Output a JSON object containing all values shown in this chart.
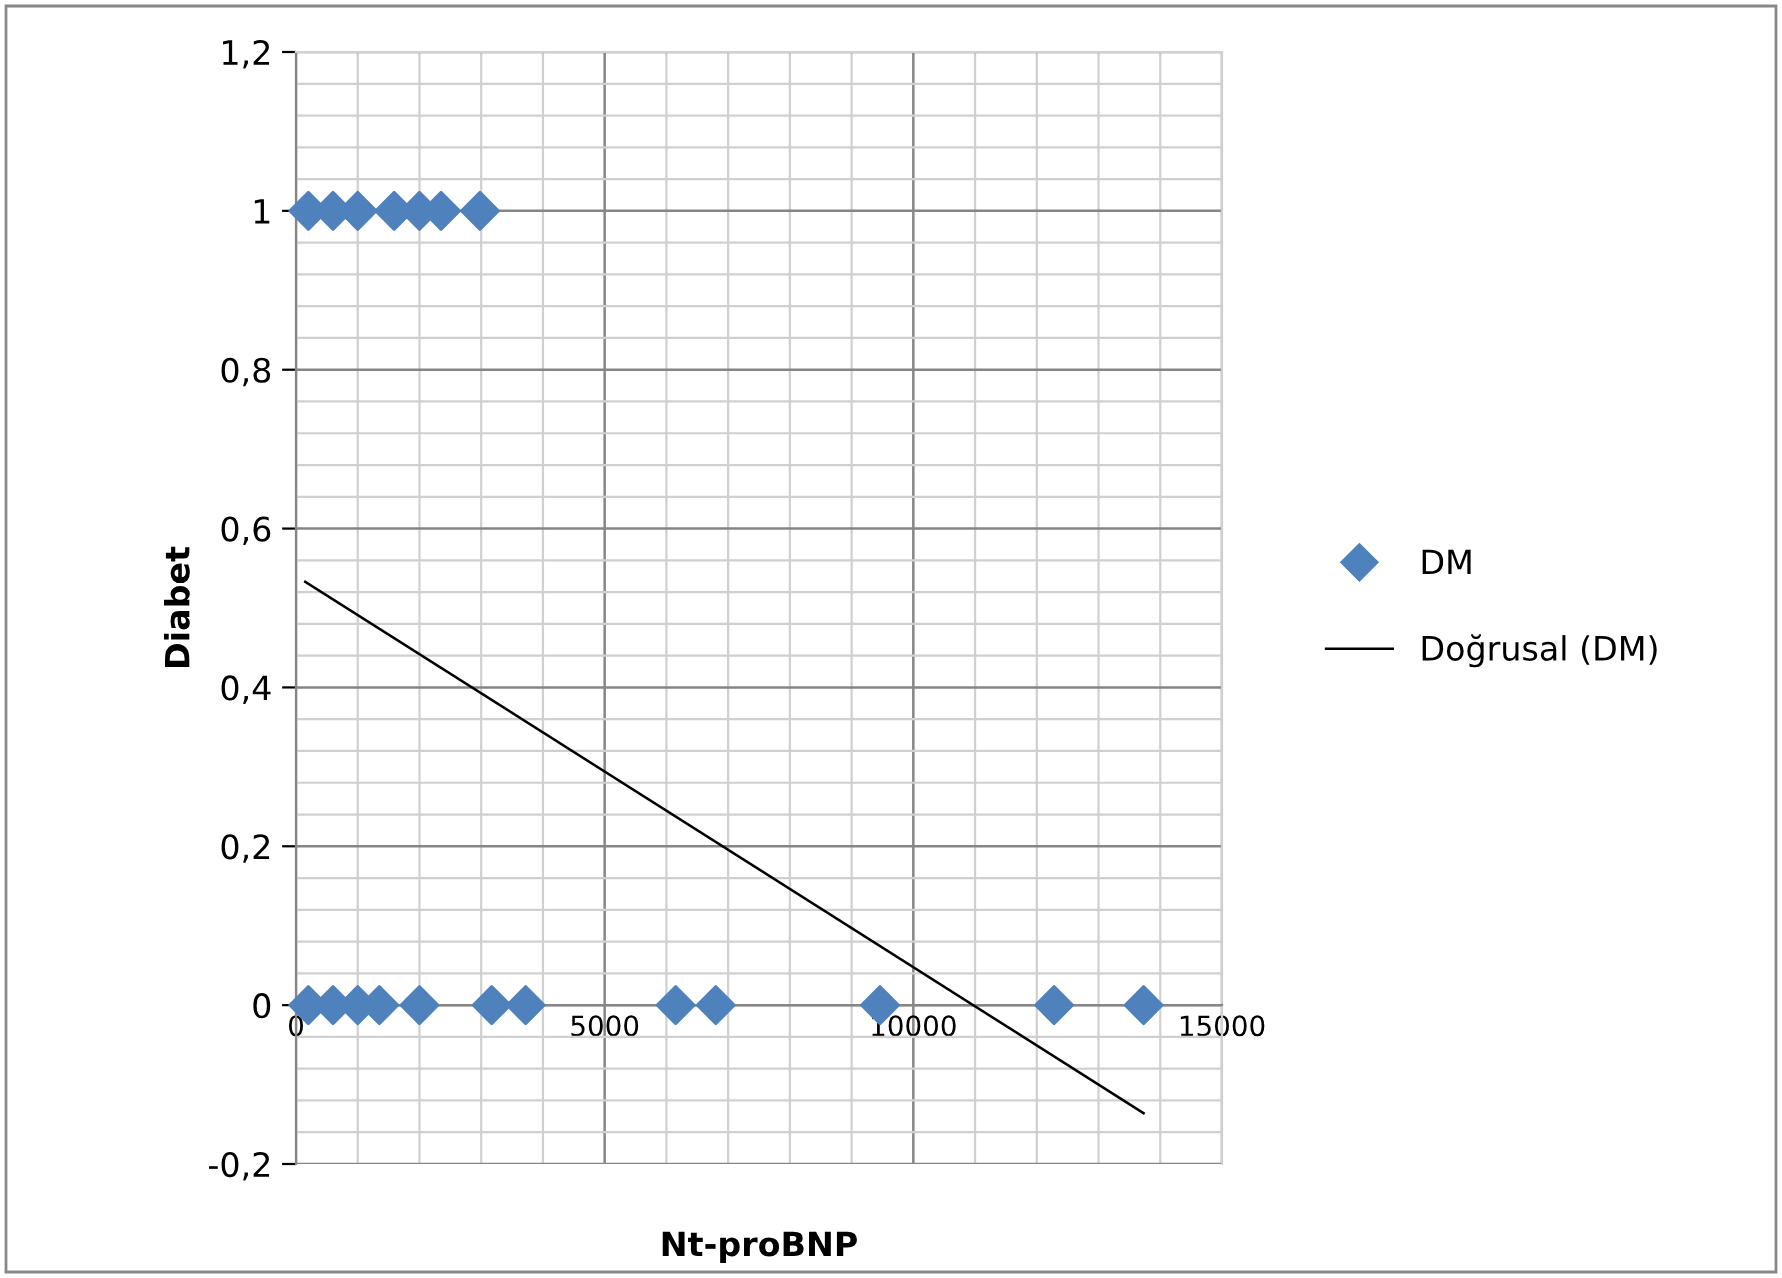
{
  "chart_data": {
    "type": "scatter",
    "xlabel": "Nt-proBNP",
    "ylabel": "Diabet",
    "series": [
      {
        "name": "DM",
        "color": "#4f81bd",
        "marker": "diamond",
        "x": [
          200,
          600,
          1000,
          1590,
          2000,
          2350,
          2980,
          200,
          600,
          1000,
          1350,
          2000,
          3170,
          3720,
          6150,
          6800,
          9460,
          12280,
          13730
        ],
        "values": [
          1,
          1,
          1,
          1,
          1,
          1,
          1,
          0,
          0,
          0,
          0,
          0,
          0,
          0,
          0,
          0,
          0,
          0,
          0
        ]
      },
      {
        "name": "Doğrusal (DM)",
        "type": "line",
        "color": "#000000",
        "marker": "none",
        "line_style": "solid",
        "x": [
          150,
          13730
        ],
        "values": [
          0.533,
          -0.136
        ]
      }
    ],
    "xlim": [
      0,
      15000
    ],
    "xticks": [
      0,
      5000,
      10000,
      15000
    ],
    "ylim": [
      -0.2,
      1.2
    ],
    "yticks": [
      {
        "value": -0.2,
        "label": "-0,2"
      },
      {
        "value": 0,
        "label": "0"
      },
      {
        "value": 0.2,
        "label": "0,2"
      },
      {
        "value": 0.4,
        "label": "0,4"
      },
      {
        "value": 0.6,
        "label": "0,6"
      },
      {
        "value": 0.8,
        "label": "0,8"
      },
      {
        "value": 1,
        "label": "1"
      },
      {
        "value": 1.2,
        "label": "1,2"
      }
    ],
    "grid": true,
    "legend": "right"
  }
}
